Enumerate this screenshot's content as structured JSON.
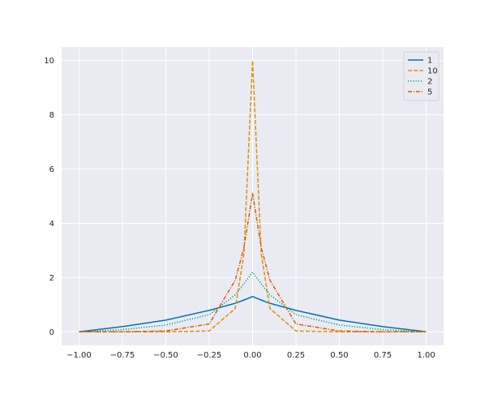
{
  "chart_data": {
    "type": "line",
    "title": "",
    "xlabel": "",
    "ylabel": "",
    "xlim": [
      -1.1,
      1.1
    ],
    "ylim": [
      -0.5,
      10.5
    ],
    "xticks": [
      -1.0,
      -0.75,
      -0.5,
      -0.25,
      0.0,
      0.25,
      0.5,
      0.75,
      1.0
    ],
    "xtick_labels": [
      "−1.00",
      "−0.75",
      "−0.50",
      "−0.25",
      "0.00",
      "0.25",
      "0.50",
      "0.75",
      "1.00"
    ],
    "yticks": [
      0,
      2,
      4,
      6,
      8,
      10
    ],
    "ytick_labels": [
      "0",
      "2",
      "4",
      "6",
      "8",
      "10"
    ],
    "grid": true,
    "background": "#eaeaf2",
    "legend_position": "top-right",
    "x": [
      -1.0,
      -0.75,
      -0.5,
      -0.25,
      -0.1,
      -0.05,
      0.0,
      0.05,
      0.1,
      0.25,
      0.5,
      0.75,
      1.0
    ],
    "series": [
      {
        "name": "1",
        "color": "#0173b2",
        "dash": "solid",
        "values": [
          0.0,
          0.19,
          0.43,
          0.79,
          1.05,
          1.17,
          1.3,
          1.17,
          1.05,
          0.79,
          0.43,
          0.19,
          0.0
        ]
      },
      {
        "name": "10",
        "color": "#de8f05",
        "dash": "dashed",
        "values": [
          0.0,
          0.0,
          0.0,
          0.03,
          0.86,
          2.86,
          10.0,
          2.86,
          0.86,
          0.03,
          0.0,
          0.0,
          0.0
        ]
      },
      {
        "name": "2",
        "color": "#029e73",
        "dash": "dotted",
        "values": [
          0.0,
          0.08,
          0.25,
          0.63,
          1.36,
          1.77,
          2.2,
          1.77,
          1.36,
          0.63,
          0.25,
          0.08,
          0.0
        ]
      },
      {
        "name": "5",
        "color": "#d55e00",
        "dash": "dashdot",
        "values": [
          0.0,
          0.0,
          0.03,
          0.29,
          1.9,
          3.1,
          5.1,
          3.1,
          1.9,
          0.29,
          0.03,
          0.0,
          0.0
        ]
      }
    ]
  }
}
